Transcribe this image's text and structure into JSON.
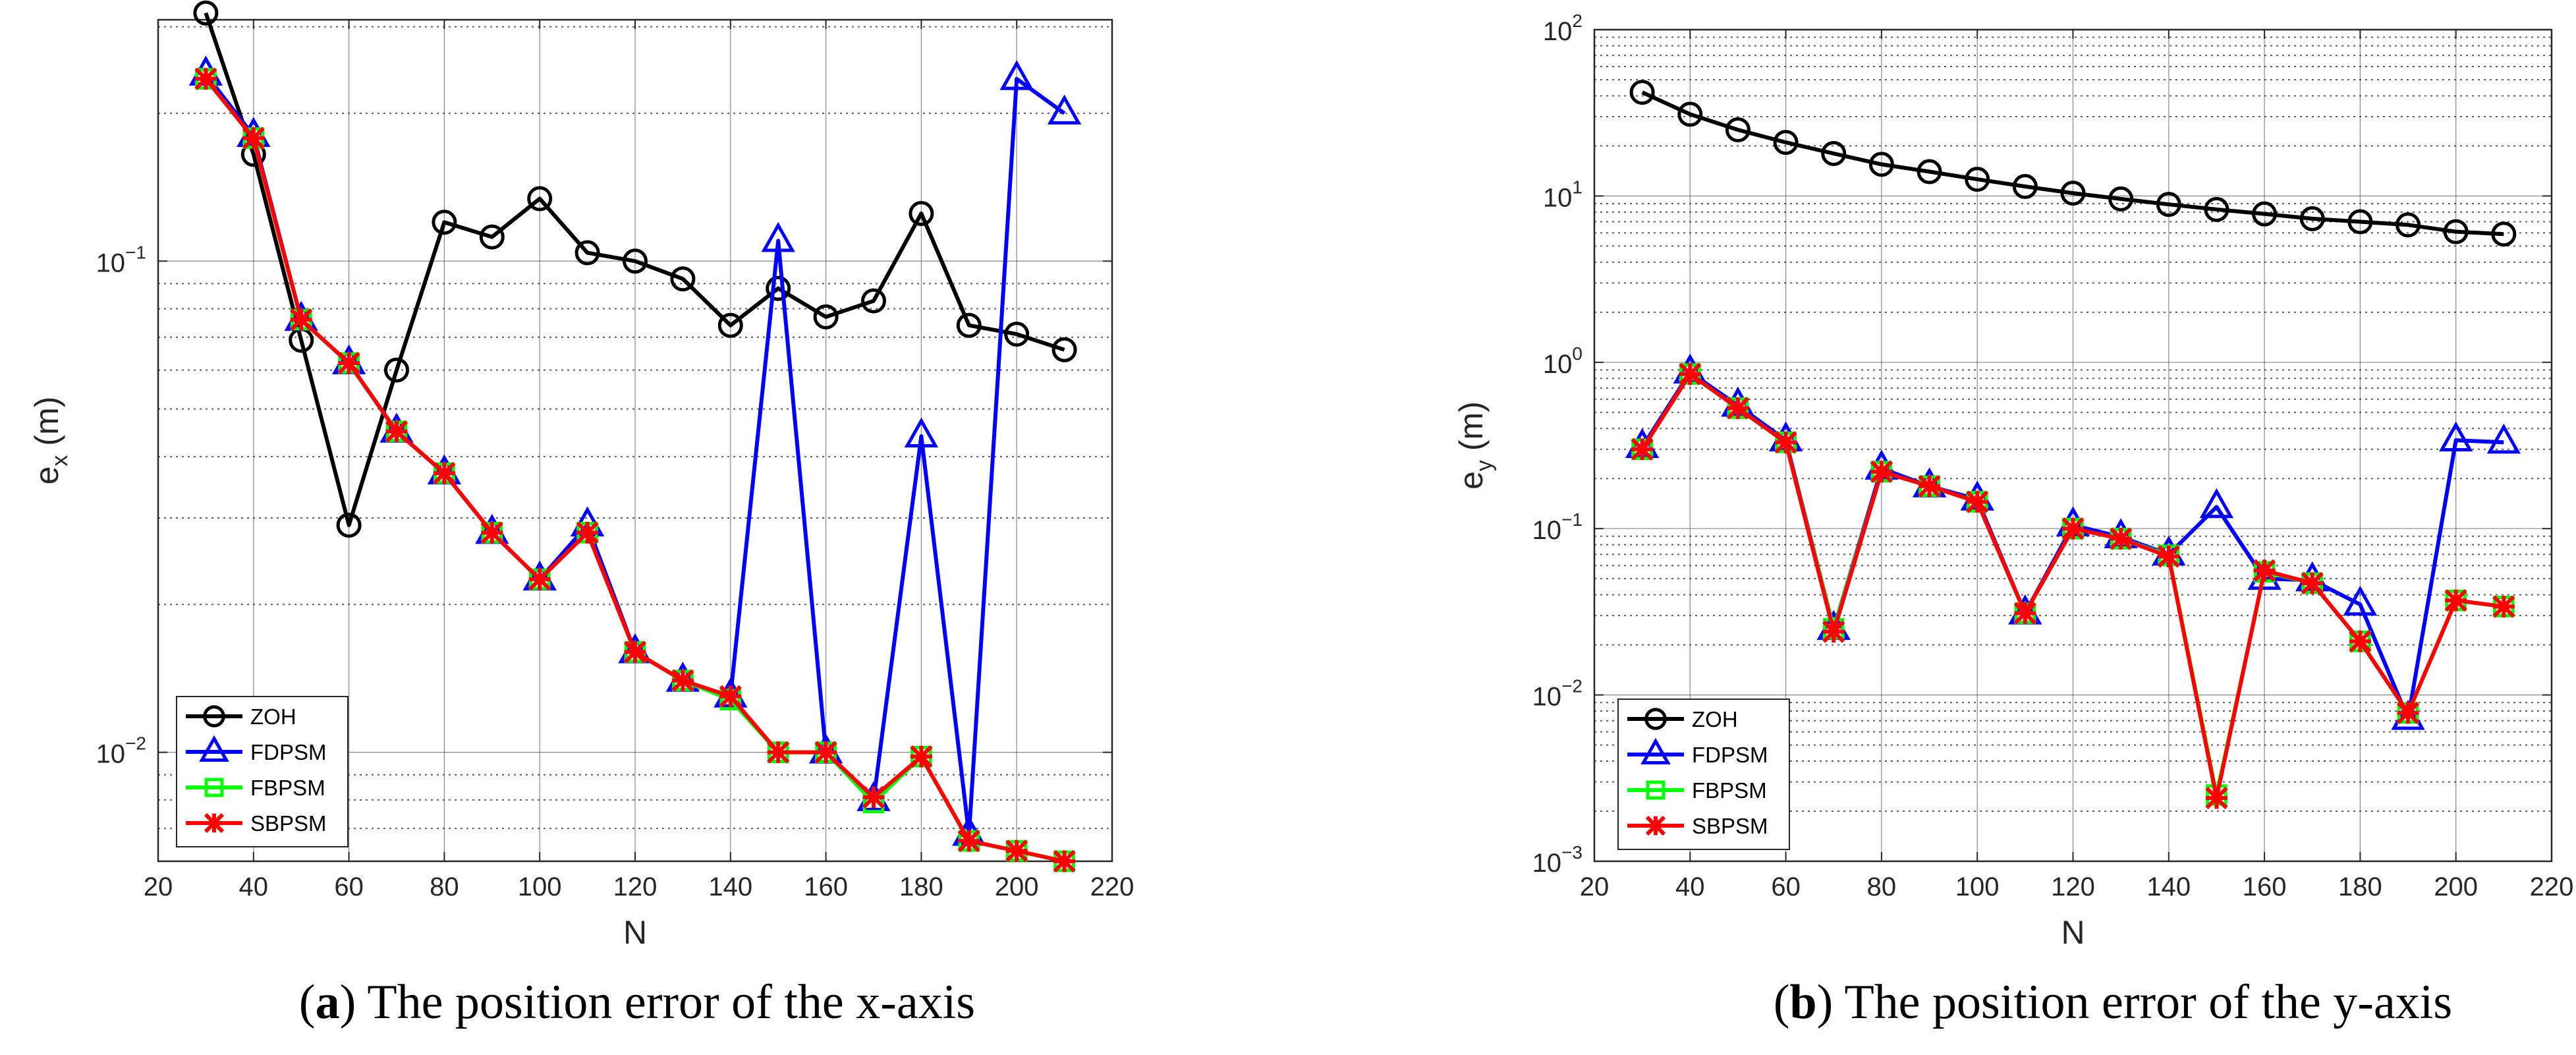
{
  "chart_data": [
    {
      "type": "line",
      "id": "a",
      "caption_letter": "a",
      "caption_text": "The position error of the x-axis",
      "xlabel": "N",
      "ylabel_main": "e",
      "ylabel_sub": "x",
      "ylabel_unit": "(m)",
      "yscale": "log",
      "xlim": [
        20,
        220
      ],
      "ylim": [
        0.006,
        0.31
      ],
      "xticks": [
        20,
        40,
        60,
        80,
        100,
        120,
        140,
        160,
        180,
        200,
        220
      ],
      "ytick_labels": [
        {
          "value": 0.1,
          "base": "10",
          "exp": "−1"
        },
        {
          "value": 0.01,
          "base": "10",
          "exp": "−2"
        }
      ],
      "x": [
        30,
        40,
        50,
        60,
        70,
        80,
        90,
        100,
        110,
        120,
        130,
        140,
        150,
        160,
        170,
        180,
        190,
        200,
        210
      ],
      "series": [
        {
          "name": "ZOH",
          "color": "#000000",
          "marker": "circle",
          "values": [
            0.32,
            0.165,
            0.069,
            0.029,
            0.06,
            0.12,
            0.112,
            0.134,
            0.104,
            0.1,
            0.092,
            0.074,
            0.088,
            0.077,
            0.083,
            0.125,
            0.074,
            0.071,
            0.066
          ]
        },
        {
          "name": "FDPSM",
          "color": "#0000ff",
          "marker": "triangle",
          "values": [
            0.24,
            0.18,
            0.076,
            0.062,
            0.045,
            0.037,
            0.028,
            0.0225,
            0.029,
            0.016,
            0.014,
            0.013,
            0.11,
            0.01,
            0.008,
            0.044,
            0.0068,
            0.235,
            0.2
          ]
        },
        {
          "name": "FBPSM",
          "color": "#00ff00",
          "marker": "square",
          "values": [
            0.235,
            0.178,
            0.076,
            0.062,
            0.045,
            0.037,
            0.028,
            0.0225,
            0.028,
            0.016,
            0.014,
            0.0128,
            0.01,
            0.01,
            0.0079,
            0.0098,
            0.0066,
            0.0063,
            0.006
          ]
        },
        {
          "name": "SBPSM",
          "color": "#ff0000",
          "marker": "star",
          "values": [
            0.235,
            0.178,
            0.076,
            0.062,
            0.045,
            0.037,
            0.028,
            0.0225,
            0.028,
            0.016,
            0.014,
            0.013,
            0.01,
            0.01,
            0.0081,
            0.0098,
            0.0066,
            0.0063,
            0.006
          ]
        }
      ]
    },
    {
      "type": "line",
      "id": "b",
      "caption_letter": "b",
      "caption_text": "The position error of the y-axis",
      "xlabel": "N",
      "ylabel_main": "e",
      "ylabel_sub": "y",
      "ylabel_unit": "(m)",
      "yscale": "log",
      "xlim": [
        20,
        220
      ],
      "ylim": [
        0.001,
        100
      ],
      "xticks": [
        20,
        40,
        60,
        80,
        100,
        120,
        140,
        160,
        180,
        200,
        220
      ],
      "ytick_labels": [
        {
          "value": 100,
          "base": "10",
          "exp": "2"
        },
        {
          "value": 10,
          "base": "10",
          "exp": "1"
        },
        {
          "value": 1,
          "base": "10",
          "exp": "0"
        },
        {
          "value": 0.1,
          "base": "10",
          "exp": "−1"
        },
        {
          "value": 0.01,
          "base": "10",
          "exp": "−2"
        },
        {
          "value": 0.001,
          "base": "10",
          "exp": "−3"
        }
      ],
      "x": [
        30,
        40,
        50,
        60,
        70,
        80,
        90,
        100,
        110,
        120,
        130,
        140,
        150,
        160,
        170,
        180,
        190,
        200,
        210
      ],
      "series": [
        {
          "name": "ZOH",
          "color": "#000000",
          "marker": "circle",
          "values": [
            42,
            31,
            25,
            21,
            18,
            15.5,
            14,
            12.6,
            11.4,
            10.4,
            9.6,
            8.9,
            8.3,
            7.8,
            7.3,
            7.0,
            6.7,
            6.1,
            5.9
          ]
        },
        {
          "name": "FDPSM",
          "color": "#0000ff",
          "marker": "triangle",
          "values": [
            0.31,
            0.87,
            0.55,
            0.34,
            0.025,
            0.23,
            0.18,
            0.15,
            0.031,
            0.105,
            0.089,
            0.07,
            0.135,
            0.05,
            0.049,
            0.035,
            0.0072,
            0.34,
            0.33
          ]
        },
        {
          "name": "FBPSM",
          "color": "#00ff00",
          "marker": "square",
          "values": [
            0.3,
            0.85,
            0.53,
            0.33,
            0.025,
            0.22,
            0.18,
            0.145,
            0.031,
            0.1,
            0.087,
            0.069,
            0.0025,
            0.055,
            0.047,
            0.021,
            0.0078,
            0.037,
            0.034
          ]
        },
        {
          "name": "SBPSM",
          "color": "#ff0000",
          "marker": "star",
          "values": [
            0.3,
            0.85,
            0.53,
            0.33,
            0.024,
            0.22,
            0.18,
            0.145,
            0.031,
            0.1,
            0.087,
            0.068,
            0.0024,
            0.056,
            0.047,
            0.021,
            0.0078,
            0.037,
            0.034
          ]
        }
      ]
    }
  ]
}
